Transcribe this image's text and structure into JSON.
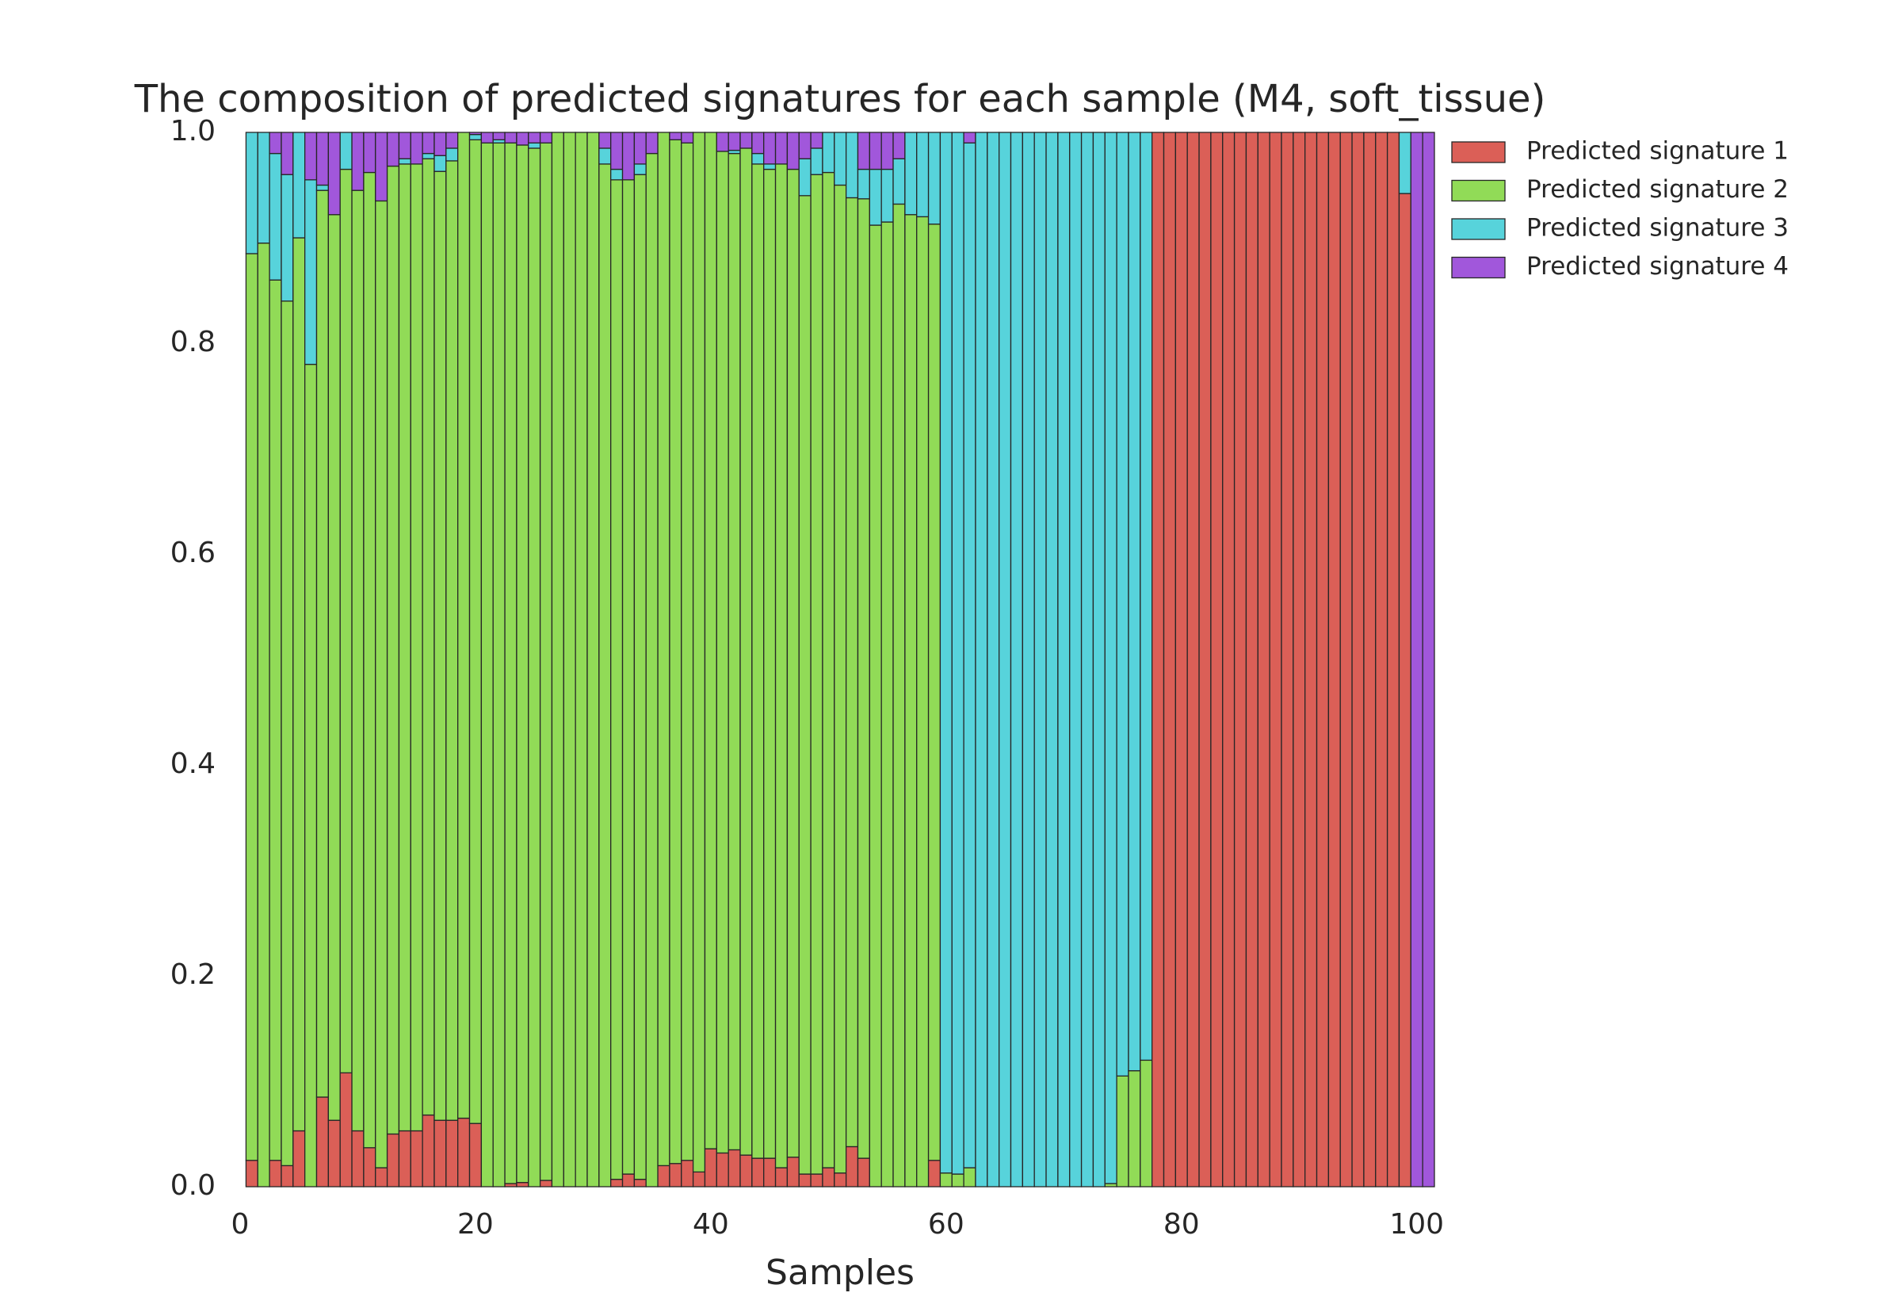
{
  "chart_data": {
    "type": "stacked_bar",
    "title": "The composition of predicted signatures for each sample (M4, soft_tissue)",
    "xlabel": "Samples",
    "x": [
      1,
      2,
      3,
      4,
      5,
      6,
      7,
      8,
      9,
      10,
      11,
      12,
      13,
      14,
      15,
      16,
      17,
      18,
      19,
      20,
      21,
      22,
      23,
      24,
      25,
      26,
      27,
      28,
      29,
      30,
      31,
      32,
      33,
      34,
      35,
      36,
      37,
      38,
      39,
      40,
      41,
      42,
      43,
      44,
      45,
      46,
      47,
      48,
      49,
      50,
      51,
      52,
      53,
      54,
      55,
      56,
      57,
      58,
      59,
      60,
      61,
      62,
      63,
      64,
      65,
      66,
      67,
      68,
      69,
      70,
      71,
      72,
      73,
      74,
      75,
      76,
      77,
      78,
      79,
      80,
      81,
      82,
      83,
      84,
      85,
      86,
      87,
      88,
      89,
      90,
      91,
      92,
      93,
      94,
      95,
      96,
      97,
      98,
      99,
      100,
      101
    ],
    "series": [
      {
        "name": "Predicted signature 1",
        "color": "#db5f57",
        "values": [
          0.025,
          0,
          0.025,
          0.02,
          0.053,
          0,
          0.085,
          0.063,
          0.108,
          0.053,
          0.037,
          0.018,
          0.05,
          0.053,
          0.053,
          0.068,
          0.063,
          0.063,
          0.065,
          0.06,
          0,
          0,
          0.003,
          0.004,
          0,
          0.006,
          0,
          0,
          0,
          0,
          0,
          0.007,
          0.012,
          0.007,
          0,
          0.02,
          0.022,
          0.025,
          0.014,
          0.036,
          0.032,
          0.035,
          0.03,
          0.027,
          0.027,
          0.018,
          0.028,
          0.012,
          0.012,
          0.018,
          0.013,
          0.038,
          0.027,
          0,
          0,
          0,
          0,
          0,
          0.025,
          0,
          0,
          0,
          0,
          0,
          0,
          0,
          0,
          0,
          0,
          0,
          0,
          0,
          0,
          0,
          0,
          0,
          0,
          1,
          1,
          1,
          1,
          1,
          1,
          1,
          1,
          1,
          1,
          1,
          1,
          1,
          1,
          1,
          1,
          1,
          1,
          1,
          1,
          1,
          0.942,
          0,
          0
        ]
      },
      {
        "name": "Predicted signature 2",
        "color": "#91db57",
        "values": [
          0.86,
          0.895,
          0.835,
          0.82,
          0.847,
          0.78,
          0.86,
          0.859,
          0.857,
          0.892,
          0.925,
          0.917,
          0.918,
          0.917,
          0.917,
          0.907,
          0.9,
          0.91,
          0.935,
          0.933,
          0.99,
          0.99,
          0.987,
          0.984,
          0.985,
          0.984,
          1,
          1,
          1,
          1,
          0.97,
          0.948,
          0.943,
          0.953,
          0.98,
          0.98,
          0.971,
          0.965,
          0.986,
          0.964,
          0.95,
          0.945,
          0.955,
          0.943,
          0.938,
          0.952,
          0.937,
          0.928,
          0.948,
          0.944,
          0.937,
          0.9,
          0.91,
          0.912,
          0.915,
          0.932,
          0.922,
          0.92,
          0.888,
          0.013,
          0.012,
          0.018,
          0,
          0,
          0,
          0,
          0,
          0,
          0,
          0,
          0,
          0,
          0,
          0.003,
          0.105,
          0.11,
          0.12,
          0,
          0,
          0,
          0,
          0,
          0,
          0,
          0,
          0,
          0,
          0,
          0,
          0,
          0,
          0,
          0,
          0,
          0,
          0,
          0,
          0,
          0,
          0,
          0
        ]
      },
      {
        "name": "Predicted signature 3",
        "color": "#57d3db",
        "values": [
          0.115,
          0.105,
          0.12,
          0.12,
          0.1,
          0.175,
          0.005,
          0,
          0.035,
          0,
          0,
          0,
          0,
          0.005,
          0,
          0.005,
          0.015,
          0.012,
          0,
          0.005,
          0,
          0.003,
          0,
          0,
          0.005,
          0,
          0,
          0,
          0,
          0,
          0.015,
          0.01,
          0,
          0.01,
          0,
          0,
          0,
          0,
          0,
          0,
          0,
          0.003,
          0,
          0.01,
          0.005,
          0,
          0,
          0.035,
          0.025,
          0.038,
          0.05,
          0.062,
          0.028,
          0.053,
          0.05,
          0.043,
          0.078,
          0.08,
          0.087,
          0.987,
          0.988,
          0.972,
          1,
          1,
          1,
          1,
          1,
          1,
          1,
          1,
          1,
          1,
          1,
          0.997,
          0.895,
          0.89,
          0.88,
          0,
          0,
          0,
          0,
          0,
          0,
          0,
          0,
          0,
          0,
          0,
          0,
          0,
          0,
          0,
          0,
          0,
          0,
          0,
          0,
          0,
          0.058,
          0,
          0
        ]
      },
      {
        "name": "Predicted signature 4",
        "color": "#a157db",
        "values": [
          0,
          0,
          0.02,
          0.04,
          0,
          0.045,
          0.05,
          0.078,
          0,
          0.055,
          0.038,
          0.065,
          0.032,
          0.025,
          0.03,
          0.02,
          0.022,
          0.015,
          0,
          0.002,
          0.01,
          0.007,
          0.01,
          0.012,
          0.01,
          0.01,
          0,
          0,
          0,
          0,
          0.015,
          0.035,
          0.045,
          0.03,
          0.02,
          0,
          0.007,
          0.01,
          0,
          0,
          0.018,
          0.017,
          0.015,
          0.02,
          0.03,
          0.03,
          0.035,
          0.025,
          0.015,
          0,
          0,
          0,
          0.035,
          0.035,
          0.035,
          0.025,
          0,
          0,
          0,
          0,
          0,
          0.01,
          0,
          0,
          0,
          0,
          0,
          0,
          0,
          0,
          0,
          0,
          0,
          0,
          0,
          0,
          0,
          0,
          0,
          0,
          0,
          0,
          0,
          0,
          0,
          0,
          0,
          0,
          0,
          0,
          0,
          0,
          0,
          0,
          0,
          0,
          0,
          0,
          0,
          1,
          1
        ]
      }
    ],
    "xlim": [
      0,
      101.5
    ],
    "xticks": [
      0,
      20,
      40,
      60,
      80,
      100
    ],
    "ylim": [
      0,
      1
    ],
    "yticks": [
      {
        "value": 0,
        "label": "0.0"
      },
      0.2,
      0.4,
      0.6,
      0.8,
      {
        "value": 1,
        "label": "1.0"
      }
    ],
    "grid": false,
    "legend": "right"
  }
}
